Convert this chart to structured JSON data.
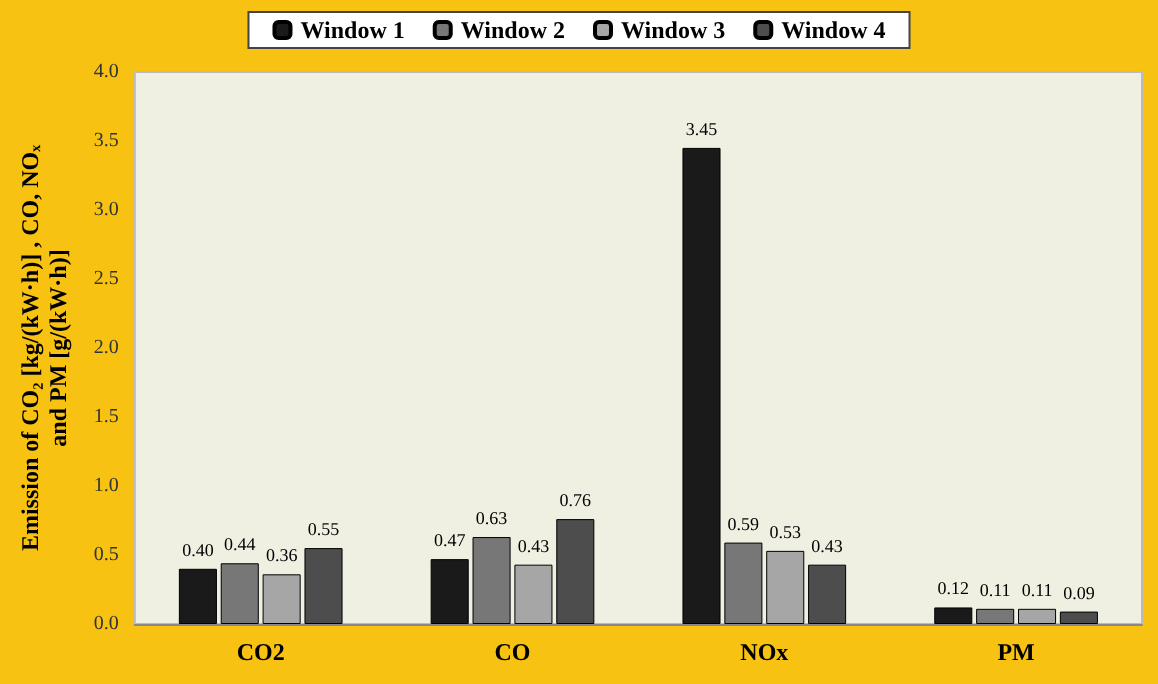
{
  "chart_data": {
    "type": "bar",
    "ylabel": "Emission of CO₂ [kg/(kW·h)] , CO, NOₓ\nand PM [g/(kW·h)]",
    "categories": [
      "CO2",
      "CO",
      "NOx",
      "PM"
    ],
    "series": [
      {
        "name": "Window 1",
        "color": "#1a1a1a",
        "values": [
          0.4,
          0.47,
          3.45,
          0.12
        ],
        "value_labels": [
          "0.40",
          "0.47",
          "3.45",
          "0.12"
        ]
      },
      {
        "name": "Window 2",
        "color": "#777777",
        "values": [
          0.44,
          0.63,
          0.59,
          0.11
        ],
        "value_labels": [
          "0.44",
          "0.63",
          "0.59",
          "0.11"
        ]
      },
      {
        "name": "Window 3",
        "color": "#a6a6a6",
        "values": [
          0.36,
          0.43,
          0.53,
          0.11
        ],
        "value_labels": [
          "0.36",
          "0.43",
          "0.53",
          "0.11"
        ]
      },
      {
        "name": "Window 4",
        "color": "#4d4d4d",
        "values": [
          0.55,
          0.76,
          0.43,
          0.09
        ],
        "value_labels": [
          "0.55",
          "0.76",
          "0.43",
          "0.09"
        ]
      }
    ],
    "ylim": [
      0,
      4
    ],
    "yticks": [
      {
        "value": 0,
        "label": "0.0"
      },
      {
        "value": 0.5,
        "label": "0.5"
      },
      {
        "value": 1,
        "label": "1.0"
      },
      {
        "value": 1.5,
        "label": "1.5"
      },
      {
        "value": 2,
        "label": "2.0"
      },
      {
        "value": 2.5,
        "label": "2.5"
      },
      {
        "value": 3,
        "label": "3.0"
      },
      {
        "value": 3.5,
        "label": "3.5"
      },
      {
        "value": 4,
        "label": "4.0"
      }
    ],
    "grid": false,
    "legend": "top"
  }
}
